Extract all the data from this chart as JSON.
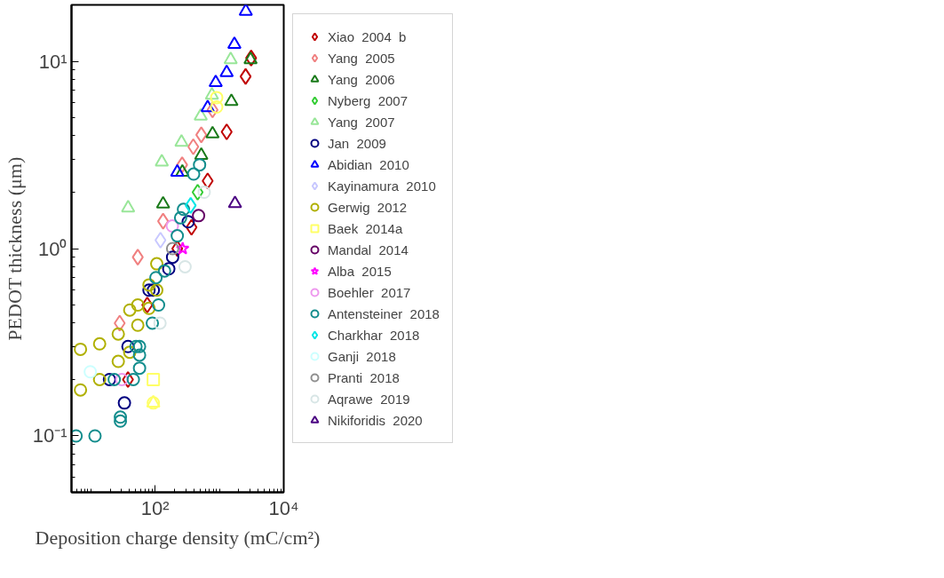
{
  "chart_data": {
    "type": "scatter",
    "xlabel": "Deposition charge density (mC/cm²)",
    "ylabel": "PEDOT thickness (μm)",
    "log": "xy",
    "grid": false,
    "legend": "right",
    "xlim": [
      5,
      10000
    ],
    "ylim": [
      0.05,
      20
    ],
    "xticks": [
      {
        "value": 100,
        "label": "10²"
      },
      {
        "value": 10000,
        "label": "10⁴"
      }
    ],
    "yticks": [
      {
        "value": 0.1,
        "label": "10⁻¹"
      },
      {
        "value": 1,
        "label": "10⁰"
      },
      {
        "value": 10,
        "label": "10¹"
      }
    ],
    "series": [
      {
        "name": "Xiao  2004  b",
        "color": "#c00000",
        "marker": "diamond",
        "x": [
          2553,
          3112,
          1296,
          656,
          368,
          221,
          75.4,
          37.8
        ],
        "values": [
          8.3,
          10.4,
          4.2,
          2.3,
          1.3,
          1.0,
          0.5,
          0.2
        ]
      },
      {
        "name": "Yang  2005",
        "color": "#f08080",
        "marker": "diamond",
        "x": [
          781,
          522,
          392,
          263,
          133,
          53.7,
          28.1
        ],
        "values": [
          5.5,
          4.05,
          3.5,
          2.8,
          1.4,
          0.9,
          0.4
        ]
      },
      {
        "name": "Yang  2006",
        "color": "#1a7a1a",
        "marker": "triangle",
        "x": [
          133,
          265,
          522,
          781,
          1535,
          3048
        ],
        "values": [
          1.73,
          2.56,
          3.15,
          4.1,
          6.1,
          10.2
        ]
      },
      {
        "name": "Nyberg  2007",
        "color": "#33cc33",
        "marker": "diamond",
        "x": [
          458
        ],
        "values": [
          2.0
        ]
      },
      {
        "name": "Yang  2007",
        "color": "#99e699",
        "marker": "triangle",
        "x": [
          38,
          127,
          257,
          512,
          764,
          1496
        ],
        "values": [
          1.65,
          2.9,
          3.7,
          5.1,
          6.6,
          10.2
        ]
      },
      {
        "name": "Jan  2009",
        "color": "#000080",
        "marker": "circle",
        "x": [
          327,
          187,
          163,
          80.3,
          93.7,
          37.8,
          19.5,
          33.3
        ],
        "values": [
          1.39,
          0.9,
          0.78,
          0.6,
          0.6,
          0.3,
          0.2,
          0.15
        ]
      },
      {
        "name": "Abidian  2010",
        "color": "#0000ff",
        "marker": "triangle",
        "x": [
          221,
          656,
          875,
          1296,
          1709,
          2571
        ],
        "values": [
          2.56,
          5.65,
          7.7,
          8.7,
          12.3,
          18.5
        ]
      },
      {
        "name": "Kayinamura  2010",
        "color": "#c8c8ff",
        "marker": "diamond",
        "x": [
          121
        ],
        "values": [
          1.11
        ]
      },
      {
        "name": "Gerwig  2012",
        "color": "#b0b000",
        "marker": "circle",
        "x": [
          106,
          80.3,
          106,
          80.3,
          53.7,
          53.7,
          40.3,
          26.7,
          26.7,
          40.3,
          13.7,
          13.7,
          6.9,
          6.9
        ],
        "values": [
          0.83,
          0.64,
          0.6,
          0.48,
          0.5,
          0.39,
          0.47,
          0.35,
          0.25,
          0.28,
          0.31,
          0.2,
          0.29,
          0.176
        ]
      },
      {
        "name": "Baek  2014a",
        "color": "#ffff66",
        "marker": [
          "square",
          "circle",
          "triangle",
          "circle",
          "circle"
        ],
        "x": [
          93.7,
          93.7,
          93.7,
          906,
          906
        ],
        "values": [
          0.2,
          0.15,
          0.15,
          6.4,
          5.7
        ]
      },
      {
        "name": "Mandal  2014",
        "color": "#660066",
        "marker": "circle",
        "x": [
          474
        ],
        "values": [
          1.5
        ]
      },
      {
        "name": "Alba  2015",
        "color": "#ff00ff",
        "marker": "star",
        "x": [
          268
        ],
        "values": [
          1.0
        ]
      },
      {
        "name": "Boehler  2017",
        "color": "#ee99ee",
        "marker": "circle",
        "x": [
          185,
          30.3
        ],
        "values": [
          1.32,
          0.2
        ]
      },
      {
        "name": "Antensteiner  2018",
        "color": "#138d8d",
        "marker": "circle",
        "x": [
          491,
          397,
          276,
          249,
          221,
          140,
          103,
          113,
          90.4,
          50.4,
          57.2,
          57.2,
          57.2,
          23.1,
          45.8,
          28.8,
          28.8,
          5.9,
          11.6
        ],
        "values": [
          2.8,
          2.5,
          1.62,
          1.46,
          1.17,
          0.76,
          0.7,
          0.5,
          0.4,
          0.3,
          0.3,
          0.27,
          0.23,
          0.2,
          0.2,
          0.126,
          0.12,
          0.1,
          0.1
        ]
      },
      {
        "name": "Charkhar  2018",
        "color": "#00e6e6",
        "marker": "diamond",
        "x": [
          357
        ],
        "values": [
          1.7
        ]
      },
      {
        "name": "Ganji  2018",
        "color": "#ccffff",
        "marker": "circle",
        "x": [
          9.8
        ],
        "values": [
          0.22
        ]
      },
      {
        "name": "Pranti  2018",
        "color": "#909090",
        "marker": "circle",
        "x": [
          187
        ],
        "values": [
          1.0
        ]
      },
      {
        "name": "Aqrawe  2019",
        "color": "#d8e6e6",
        "marker": "circle",
        "x": [
          119,
          292,
          579
        ],
        "values": [
          0.4,
          0.8,
          2.0
        ]
      },
      {
        "name": "Nikiforidis  2020",
        "color": "#4b0082",
        "marker": "triangle",
        "x": [
          1746
        ],
        "values": [
          1.74
        ]
      }
    ]
  }
}
